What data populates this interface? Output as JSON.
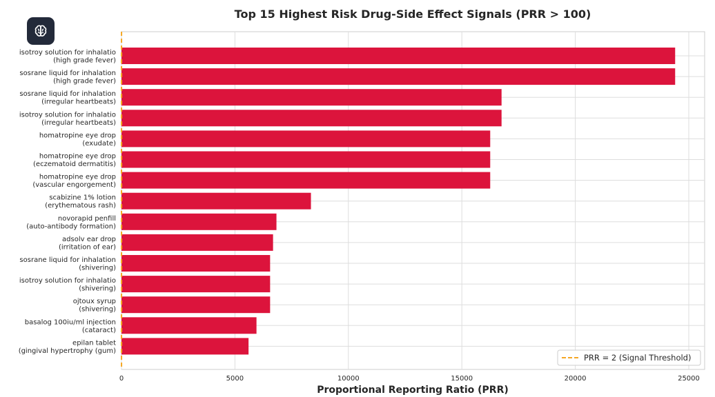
{
  "app": {
    "icon": "brain-icon"
  },
  "chart_data": {
    "type": "bar",
    "orientation": "horizontal",
    "title": "Top 15 Highest Risk Drug-Side Effect Signals (PRR > 100)",
    "xlabel": "Proportional Reporting Ratio (PRR)",
    "ylabel": "",
    "xlim": [
      0,
      25700
    ],
    "xticks": [
      0,
      5000,
      10000,
      15000,
      20000,
      25000
    ],
    "grid": true,
    "categories": [
      [
        "isotroy solution for inhalatio",
        "(high grade fever)"
      ],
      [
        "sosrane liquid for inhalation",
        "(high grade fever)"
      ],
      [
        "sosrane liquid for inhalation",
        "(irregular heartbeats)"
      ],
      [
        "isotroy solution for inhalatio",
        "(irregular heartbeats)"
      ],
      [
        "homatropine eye drop",
        "(exudate)"
      ],
      [
        "homatropine eye drop",
        "(eczematoid dermatitis)"
      ],
      [
        "homatropine eye drop",
        "(vascular engorgement)"
      ],
      [
        "scabizine 1% lotion",
        "(erythematous rash)"
      ],
      [
        "novorapid penfill",
        "(auto-antibody formation)"
      ],
      [
        "adsolv ear drop",
        "(irritation of ear)"
      ],
      [
        "sosrane liquid for inhalation",
        "(shivering)"
      ],
      [
        "isotroy solution for inhalatio",
        "(shivering)"
      ],
      [
        "ojtoux syrup",
        "(shivering)"
      ],
      [
        "basalog 100iu/ml injection",
        "(cataract)"
      ],
      [
        "epilan tablet",
        "(gingival hypertrophy (gum)"
      ]
    ],
    "values": [
      24400,
      24400,
      16750,
      16750,
      16250,
      16250,
      16250,
      8350,
      6830,
      6680,
      6550,
      6550,
      6550,
      5950,
      5600
    ],
    "bar_color": "#dc143c",
    "threshold": {
      "value": 2,
      "label": "PRR = 2 (Signal Threshold)",
      "color": "#f5a623"
    },
    "legend_position": "bottom-right"
  }
}
